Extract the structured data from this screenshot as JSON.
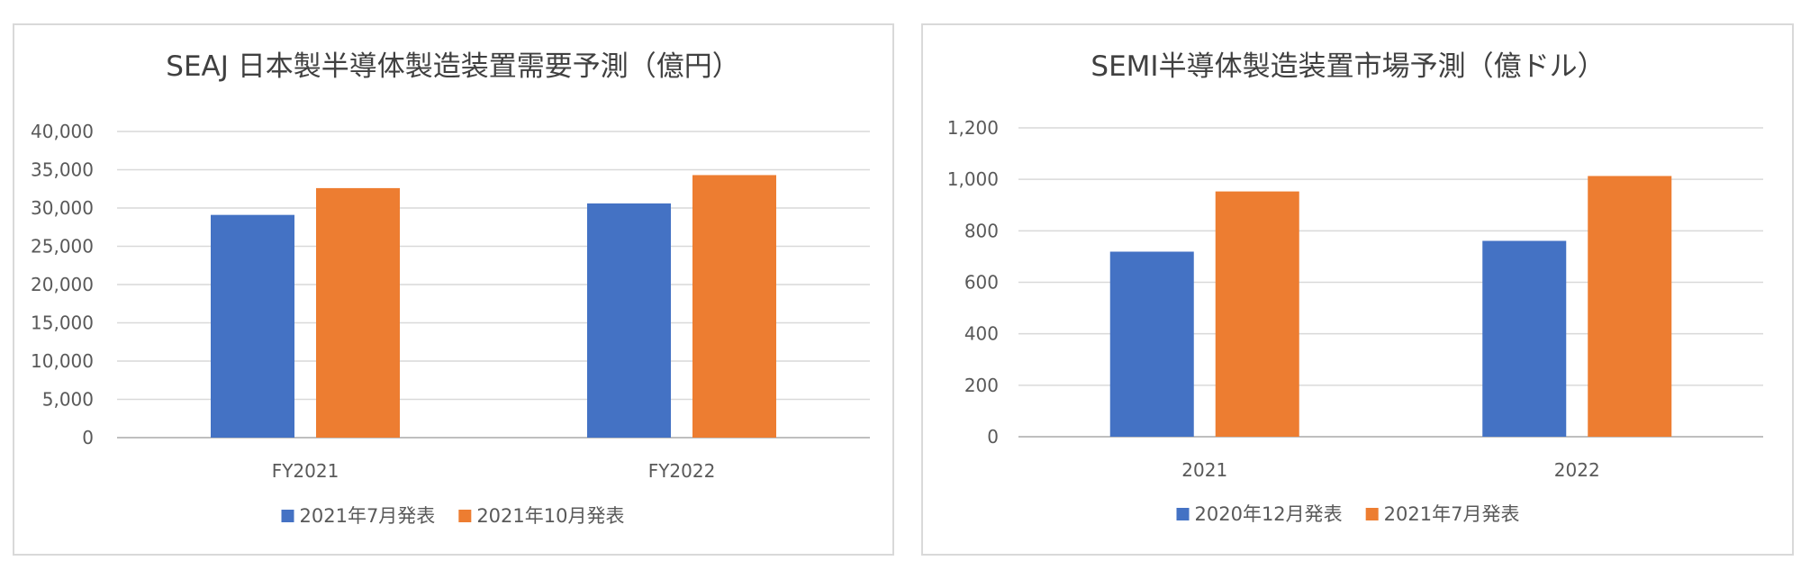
{
  "chart_data": [
    {
      "type": "bar",
      "title": "SEAJ 日本製半導体製造装置需要予測（億円）",
      "xlabel": "",
      "ylabel": "",
      "categories": [
        "FY2021",
        "FY2022"
      ],
      "series": [
        {
          "name": "2021年7月発表",
          "values": [
            29100,
            30600
          ],
          "color": "#4472C4"
        },
        {
          "name": "2021年10月発表",
          "values": [
            32600,
            34300
          ],
          "color": "#ED7D31"
        }
      ],
      "ylim": [
        0,
        40000
      ],
      "y_ticks": [
        "0",
        "5,000",
        "10,000",
        "15,000",
        "20,000",
        "25,000",
        "30,000",
        "35,000",
        "40,000"
      ],
      "y_tick_values": [
        0,
        5000,
        10000,
        15000,
        20000,
        25000,
        30000,
        35000,
        40000
      ],
      "grid": true,
      "legend_position": "bottom"
    },
    {
      "type": "bar",
      "title": "SEMI半導体製造装置市場予測（億ドル）",
      "xlabel": "",
      "ylabel": "",
      "categories": [
        "2021",
        "2022"
      ],
      "series": [
        {
          "name": "2020年12月発表",
          "values": [
            719,
            761
          ],
          "color": "#4472C4"
        },
        {
          "name": "2021年7月発表",
          "values": [
            953,
            1013
          ],
          "color": "#ED7D31"
        }
      ],
      "ylim": [
        0,
        1200
      ],
      "y_ticks": [
        "0",
        "200",
        "400",
        "600",
        "800",
        "1,000",
        "1,200"
      ],
      "y_tick_values": [
        0,
        200,
        400,
        600,
        800,
        1000,
        1200
      ],
      "grid": true,
      "legend_position": "bottom"
    }
  ]
}
